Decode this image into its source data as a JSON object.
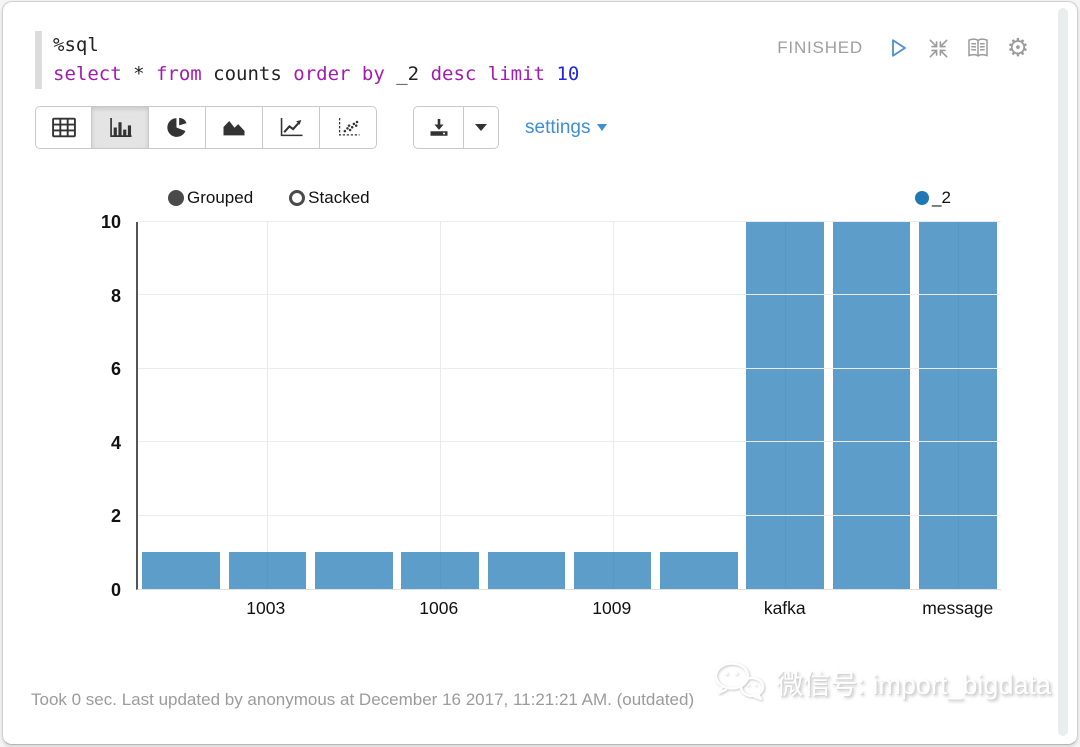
{
  "editor": {
    "interpreter": "%sql",
    "query": "select * from counts order by _2 desc limit 10",
    "lines": [
      [
        {
          "t": "%sql",
          "c": "plain"
        }
      ],
      [
        {
          "t": "select",
          "c": "kw"
        },
        {
          "t": " * ",
          "c": "plain"
        },
        {
          "t": "from",
          "c": "kw"
        },
        {
          "t": " counts ",
          "c": "plain"
        },
        {
          "t": "order",
          "c": "kw"
        },
        {
          "t": " ",
          "c": "plain"
        },
        {
          "t": "by",
          "c": "kw"
        },
        {
          "t": " _2 ",
          "c": "plain"
        },
        {
          "t": "desc",
          "c": "kw"
        },
        {
          "t": " ",
          "c": "plain"
        },
        {
          "t": "limit",
          "c": "kw"
        },
        {
          "t": " ",
          "c": "plain"
        },
        {
          "t": "10",
          "c": "num"
        }
      ]
    ]
  },
  "status": {
    "label": "FINISHED",
    "icons": [
      "play-icon",
      "compress-icon",
      "book-icon",
      "gear-icon"
    ],
    "play_color": "#4d8fce",
    "icon_color": "#9b9b9b"
  },
  "toolbar": {
    "chart_types": [
      {
        "name": "table",
        "active": false
      },
      {
        "name": "bar",
        "active": true
      },
      {
        "name": "pie",
        "active": false
      },
      {
        "name": "area",
        "active": false
      },
      {
        "name": "line",
        "active": false
      },
      {
        "name": "scatter",
        "active": false
      }
    ],
    "download_icon": "download-icon",
    "download_caret_icon": "caret-down-icon",
    "settings_label": "settings",
    "settings_color": "#3e8ed2"
  },
  "chart_controls": {
    "grouped_label": "Grouped",
    "stacked_label": "Stacked",
    "selected": "Grouped"
  },
  "legend": {
    "series": "_2",
    "color": "#1f77b4"
  },
  "chart_data": {
    "type": "bar",
    "mode": "grouped",
    "series": [
      {
        "name": "_2",
        "values": [
          1,
          1,
          1,
          1,
          1,
          1,
          1,
          10,
          10,
          10
        ]
      }
    ],
    "x_tick_labels": [
      {
        "label": "1003",
        "bar_index": 1
      },
      {
        "label": "1006",
        "bar_index": 3
      },
      {
        "label": "1009",
        "bar_index": 5
      },
      {
        "label": "kafka",
        "bar_index": 7
      },
      {
        "label": "message",
        "bar_index": 9
      }
    ],
    "y_ticks": [
      0,
      2,
      4,
      6,
      8,
      10
    ],
    "ylim": [
      0,
      10
    ],
    "bar_color": "#5d9dc9",
    "grid": true,
    "legend_position": "top-right"
  },
  "footer": {
    "status_text": "Took 0 sec. Last updated by anonymous at December 16 2017, 11:21:21 AM. (outdated)"
  },
  "watermark": {
    "icon": "wechat-icon",
    "text": "微信号: import_bigdata"
  }
}
